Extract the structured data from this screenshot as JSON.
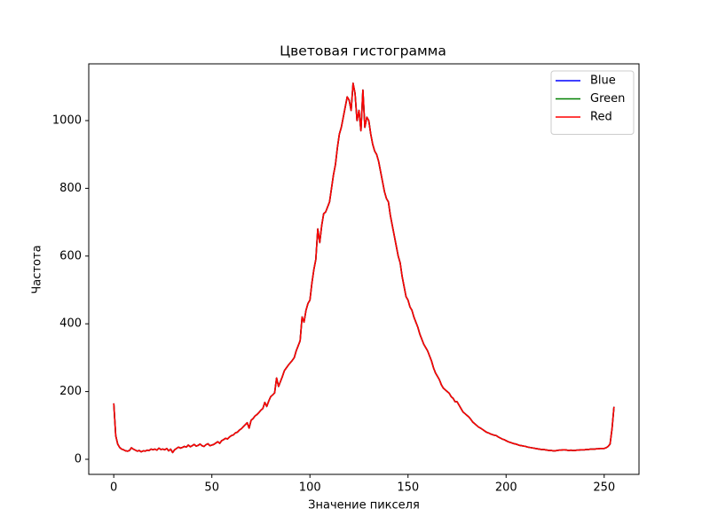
{
  "chart_data": {
    "type": "line",
    "title": "Цветовая гистограмма",
    "x_label": "Значение пикселя",
    "y_label": "Частота",
    "x": [
      0,
      1,
      2,
      3,
      4,
      5,
      6,
      7,
      8,
      9,
      10,
      11,
      12,
      13,
      14,
      15,
      16,
      17,
      18,
      19,
      20,
      21,
      22,
      23,
      24,
      25,
      26,
      27,
      28,
      29,
      30,
      31,
      32,
      33,
      34,
      35,
      36,
      37,
      38,
      39,
      40,
      41,
      42,
      43,
      44,
      45,
      46,
      47,
      48,
      49,
      50,
      51,
      52,
      53,
      54,
      55,
      56,
      57,
      58,
      59,
      60,
      61,
      62,
      63,
      64,
      65,
      66,
      67,
      68,
      69,
      70,
      71,
      72,
      73,
      74,
      75,
      76,
      77,
      78,
      79,
      80,
      81,
      82,
      83,
      84,
      85,
      86,
      87,
      88,
      89,
      90,
      91,
      92,
      93,
      94,
      95,
      96,
      97,
      98,
      99,
      100,
      101,
      102,
      103,
      104,
      105,
      106,
      107,
      108,
      109,
      110,
      111,
      112,
      113,
      114,
      115,
      116,
      117,
      118,
      119,
      120,
      121,
      122,
      123,
      124,
      125,
      126,
      127,
      128,
      129,
      130,
      131,
      132,
      133,
      134,
      135,
      136,
      137,
      138,
      139,
      140,
      141,
      142,
      143,
      144,
      145,
      146,
      147,
      148,
      149,
      150,
      151,
      152,
      153,
      154,
      155,
      156,
      157,
      158,
      159,
      160,
      161,
      162,
      163,
      164,
      165,
      166,
      167,
      168,
      169,
      170,
      171,
      172,
      173,
      174,
      175,
      176,
      177,
      178,
      179,
      180,
      181,
      182,
      183,
      184,
      185,
      186,
      187,
      188,
      189,
      190,
      191,
      192,
      193,
      194,
      195,
      196,
      197,
      198,
      199,
      200,
      201,
      202,
      203,
      204,
      205,
      206,
      207,
      208,
      209,
      210,
      211,
      212,
      213,
      214,
      215,
      216,
      217,
      218,
      219,
      220,
      221,
      222,
      223,
      224,
      225,
      226,
      227,
      228,
      229,
      230,
      231,
      232,
      233,
      234,
      235,
      236,
      237,
      238,
      239,
      240,
      241,
      242,
      243,
      244,
      245,
      246,
      247,
      248,
      249,
      250,
      251,
      252,
      253,
      254,
      255
    ],
    "series": [
      {
        "name": "Blue",
        "color": "#0000ff",
        "values": [
          165,
          70,
          45,
          35,
          30,
          28,
          25,
          24,
          26,
          34,
          30,
          27,
          24,
          26,
          22,
          25,
          24,
          27,
          26,
          30,
          28,
          30,
          27,
          33,
          29,
          30,
          28,
          32,
          25,
          30,
          20,
          28,
          32,
          36,
          33,
          35,
          38,
          36,
          42,
          37,
          40,
          44,
          39,
          41,
          45,
          40,
          38,
          43,
          46,
          40,
          42,
          44,
          48,
          52,
          47,
          55,
          58,
          62,
          60,
          66,
          70,
          72,
          78,
          80,
          86,
          90,
          96,
          102,
          108,
          92,
          115,
          120,
          128,
          132,
          138,
          145,
          150,
          168,
          156,
          172,
          185,
          190,
          196,
          240,
          215,
          230,
          245,
          262,
          270,
          278,
          285,
          292,
          300,
          320,
          335,
          350,
          420,
          405,
          440,
          460,
          470,
          520,
          560,
          590,
          680,
          640,
          690,
          725,
          730,
          745,
          760,
          800,
          840,
          870,
          920,
          960,
          980,
          1010,
          1040,
          1070,
          1060,
          1030,
          1110,
          1080,
          1000,
          1030,
          970,
          1090,
          980,
          1010,
          1000,
          960,
          930,
          910,
          900,
          880,
          850,
          820,
          790,
          770,
          760,
          720,
          690,
          660,
          630,
          600,
          580,
          540,
          510,
          480,
          470,
          450,
          440,
          420,
          405,
          390,
          370,
          355,
          340,
          330,
          320,
          305,
          290,
          270,
          255,
          245,
          235,
          220,
          210,
          205,
          200,
          195,
          185,
          180,
          170,
          170,
          160,
          150,
          140,
          135,
          130,
          125,
          118,
          110,
          105,
          100,
          95,
          92,
          88,
          84,
          80,
          78,
          75,
          73,
          71,
          70,
          66,
          63,
          60,
          58,
          55,
          52,
          50,
          48,
          46,
          45,
          43,
          41,
          40,
          39,
          38,
          36,
          35,
          34,
          33,
          32,
          31,
          30,
          29,
          29,
          28,
          27,
          26,
          26,
          25,
          25,
          26,
          27,
          27,
          28,
          28,
          27,
          26,
          27,
          26,
          26,
          27,
          27,
          28,
          28,
          28,
          29,
          29,
          30,
          30,
          30,
          31,
          31,
          32,
          32,
          32,
          34,
          38,
          45,
          90,
          155
        ]
      },
      {
        "name": "Green",
        "color": "#008000",
        "values": [
          165,
          70,
          45,
          35,
          30,
          28,
          25,
          24,
          26,
          34,
          30,
          27,
          24,
          26,
          22,
          25,
          24,
          27,
          26,
          30,
          28,
          30,
          27,
          33,
          29,
          30,
          28,
          32,
          25,
          30,
          20,
          28,
          32,
          36,
          33,
          35,
          38,
          36,
          42,
          37,
          40,
          44,
          39,
          41,
          45,
          40,
          38,
          43,
          46,
          40,
          42,
          44,
          48,
          52,
          47,
          55,
          58,
          62,
          60,
          66,
          70,
          72,
          78,
          80,
          86,
          90,
          96,
          102,
          108,
          92,
          115,
          120,
          128,
          132,
          138,
          145,
          150,
          168,
          156,
          172,
          185,
          190,
          196,
          240,
          215,
          230,
          245,
          262,
          270,
          278,
          285,
          292,
          300,
          320,
          335,
          350,
          420,
          405,
          440,
          460,
          470,
          520,
          560,
          590,
          680,
          640,
          690,
          725,
          730,
          745,
          760,
          800,
          840,
          870,
          920,
          960,
          980,
          1010,
          1040,
          1070,
          1060,
          1030,
          1110,
          1080,
          1000,
          1030,
          970,
          1090,
          980,
          1010,
          1000,
          960,
          930,
          910,
          900,
          880,
          850,
          820,
          790,
          770,
          760,
          720,
          690,
          660,
          630,
          600,
          580,
          540,
          510,
          480,
          470,
          450,
          440,
          420,
          405,
          390,
          370,
          355,
          340,
          330,
          320,
          305,
          290,
          270,
          255,
          245,
          235,
          220,
          210,
          205,
          200,
          195,
          185,
          180,
          170,
          170,
          160,
          150,
          140,
          135,
          130,
          125,
          118,
          110,
          105,
          100,
          95,
          92,
          88,
          84,
          80,
          78,
          75,
          73,
          71,
          70,
          66,
          63,
          60,
          58,
          55,
          52,
          50,
          48,
          46,
          45,
          43,
          41,
          40,
          39,
          38,
          36,
          35,
          34,
          33,
          32,
          31,
          30,
          29,
          29,
          28,
          27,
          26,
          26,
          25,
          25,
          26,
          27,
          27,
          28,
          28,
          27,
          26,
          27,
          26,
          26,
          27,
          27,
          28,
          28,
          28,
          29,
          29,
          30,
          30,
          30,
          31,
          31,
          32,
          32,
          32,
          34,
          38,
          45,
          90,
          155
        ]
      },
      {
        "name": "Red",
        "color": "#ff0000",
        "values": [
          165,
          70,
          45,
          35,
          30,
          28,
          25,
          24,
          26,
          34,
          30,
          27,
          24,
          26,
          22,
          25,
          24,
          27,
          26,
          30,
          28,
          30,
          27,
          33,
          29,
          30,
          28,
          32,
          25,
          30,
          20,
          28,
          32,
          36,
          33,
          35,
          38,
          36,
          42,
          37,
          40,
          44,
          39,
          41,
          45,
          40,
          38,
          43,
          46,
          40,
          42,
          44,
          48,
          52,
          47,
          55,
          58,
          62,
          60,
          66,
          70,
          72,
          78,
          80,
          86,
          90,
          96,
          102,
          108,
          92,
          115,
          120,
          128,
          132,
          138,
          145,
          150,
          168,
          156,
          172,
          185,
          190,
          196,
          240,
          215,
          230,
          245,
          262,
          270,
          278,
          285,
          292,
          300,
          320,
          335,
          350,
          420,
          405,
          440,
          460,
          470,
          520,
          560,
          590,
          680,
          640,
          690,
          725,
          730,
          745,
          760,
          800,
          840,
          870,
          920,
          960,
          980,
          1010,
          1040,
          1070,
          1060,
          1030,
          1110,
          1080,
          1000,
          1030,
          970,
          1090,
          980,
          1010,
          1000,
          960,
          930,
          910,
          900,
          880,
          850,
          820,
          790,
          770,
          760,
          720,
          690,
          660,
          630,
          600,
          580,
          540,
          510,
          480,
          470,
          450,
          440,
          420,
          405,
          390,
          370,
          355,
          340,
          330,
          320,
          305,
          290,
          270,
          255,
          245,
          235,
          220,
          210,
          205,
          200,
          195,
          185,
          180,
          170,
          170,
          160,
          150,
          140,
          135,
          130,
          125,
          118,
          110,
          105,
          100,
          95,
          92,
          88,
          84,
          80,
          78,
          75,
          73,
          71,
          70,
          66,
          63,
          60,
          58,
          55,
          52,
          50,
          48,
          46,
          45,
          43,
          41,
          40,
          39,
          38,
          36,
          35,
          34,
          33,
          32,
          31,
          30,
          29,
          29,
          28,
          27,
          26,
          26,
          25,
          25,
          26,
          27,
          27,
          28,
          28,
          27,
          26,
          27,
          26,
          26,
          27,
          27,
          28,
          28,
          28,
          29,
          29,
          30,
          30,
          30,
          31,
          31,
          32,
          32,
          32,
          34,
          38,
          45,
          90,
          155
        ]
      }
    ],
    "xlim": [
      -12.75,
      267.75
    ],
    "xticks": [
      0,
      50,
      100,
      150,
      200,
      250
    ],
    "ylim": [
      -44.5,
      1167.5
    ],
    "yticks": [
      0,
      200,
      400,
      600,
      800,
      1000
    ],
    "grid": false,
    "legend": "upper right"
  }
}
